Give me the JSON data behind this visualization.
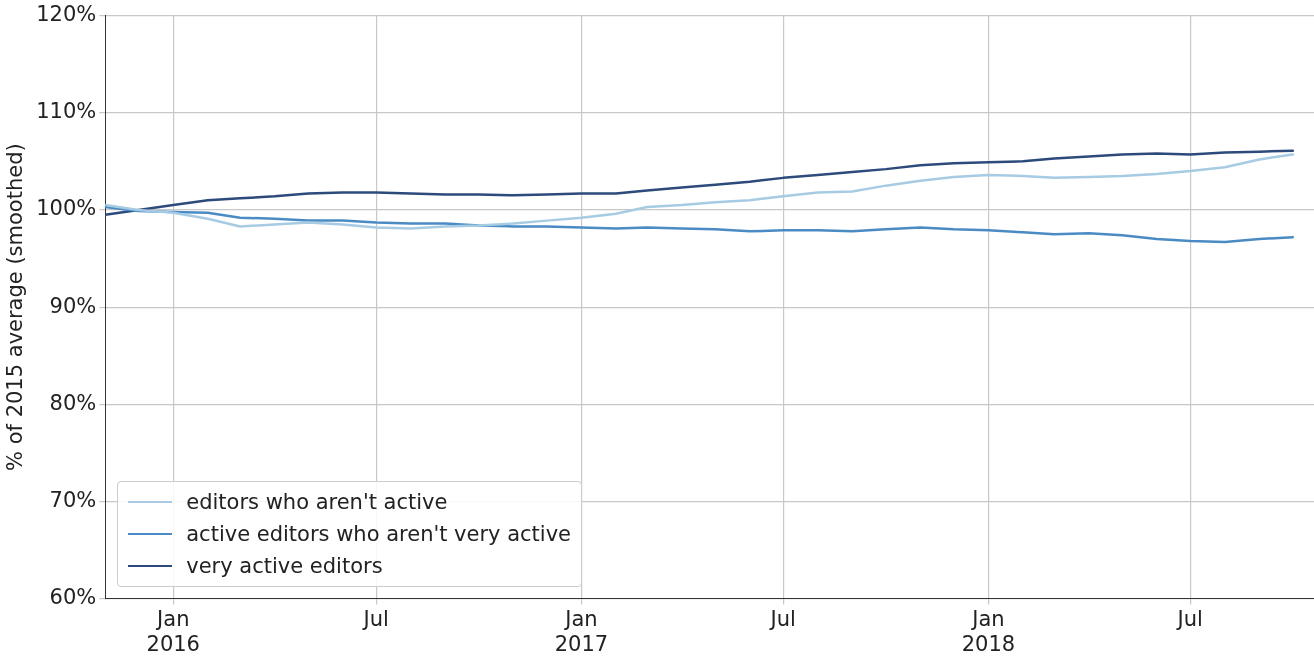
{
  "chart_data": {
    "type": "line",
    "ylabel": "% of 2015 average (smoothed)",
    "x": [
      "2015-11",
      "2015-12",
      "2016-01",
      "2016-02",
      "2016-03",
      "2016-04",
      "2016-05",
      "2016-06",
      "2016-07",
      "2016-08",
      "2016-09",
      "2016-10",
      "2016-11",
      "2016-12",
      "2017-01",
      "2017-02",
      "2017-03",
      "2017-04",
      "2017-05",
      "2017-06",
      "2017-07",
      "2017-08",
      "2017-09",
      "2017-10",
      "2017-11",
      "2017-12",
      "2018-01",
      "2018-02",
      "2018-03",
      "2018-04",
      "2018-05",
      "2018-06",
      "2018-07",
      "2018-08",
      "2018-09",
      "2018-10"
    ],
    "series": [
      {
        "name": "editors who aren't active",
        "color": "#a6cbe3",
        "values": [
          100.5,
          100.0,
          99.7,
          99.1,
          98.3,
          98.5,
          98.7,
          98.5,
          98.2,
          98.1,
          98.3,
          98.4,
          98.6,
          98.9,
          99.2,
          99.6,
          100.3,
          100.5,
          100.8,
          101.0,
          101.4,
          101.8,
          101.9,
          102.5,
          103.0,
          103.4,
          103.6,
          103.5,
          103.3,
          103.4,
          103.5,
          103.7,
          104.0,
          104.4,
          105.2,
          105.7
        ]
      },
      {
        "name": "active editors who aren't very active",
        "color": "#4a8bc4",
        "values": [
          100.3,
          99.9,
          99.8,
          99.7,
          99.2,
          99.1,
          98.9,
          98.9,
          98.7,
          98.6,
          98.6,
          98.4,
          98.3,
          98.3,
          98.2,
          98.1,
          98.2,
          98.1,
          98.0,
          97.8,
          97.9,
          97.9,
          97.8,
          98.0,
          98.2,
          98.0,
          97.9,
          97.7,
          97.5,
          97.6,
          97.4,
          97.0,
          96.8,
          96.7,
          97.0,
          97.2
        ]
      },
      {
        "name": "very active editors",
        "color": "#2d4a7c",
        "values": [
          99.5,
          100.0,
          100.5,
          101.0,
          101.2,
          101.4,
          101.7,
          101.8,
          101.8,
          101.7,
          101.6,
          101.6,
          101.5,
          101.6,
          101.7,
          101.7,
          102.0,
          102.3,
          102.6,
          102.9,
          103.3,
          103.6,
          103.9,
          104.2,
          104.6,
          104.8,
          104.9,
          105.0,
          105.3,
          105.5,
          105.7,
          105.8,
          105.7,
          105.9,
          106.0,
          106.1
        ]
      }
    ],
    "xlim": [
      "2015-11-01",
      "2018-10-20"
    ],
    "xticks": [
      {
        "value": "2016-01",
        "label": "Jan\n2016"
      },
      {
        "value": "2016-07",
        "label": "Jul"
      },
      {
        "value": "2017-01",
        "label": "Jan\n2017"
      },
      {
        "value": "2017-07",
        "label": "Jul"
      },
      {
        "value": "2018-01",
        "label": "Jan\n2018"
      },
      {
        "value": "2018-07",
        "label": "Jul"
      }
    ],
    "ylim": [
      60,
      120
    ],
    "yticks": [
      {
        "value": 60,
        "label": "60%"
      },
      {
        "value": 70,
        "label": "70%"
      },
      {
        "value": 80,
        "label": "80%"
      },
      {
        "value": 90,
        "label": "90%"
      },
      {
        "value": 100,
        "label": "100%"
      },
      {
        "value": 110,
        "label": "110%"
      },
      {
        "value": 120,
        "label": "120%"
      }
    ],
    "grid": true,
    "legend": "bottom left",
    "line_style": "solid",
    "marker": "none"
  }
}
